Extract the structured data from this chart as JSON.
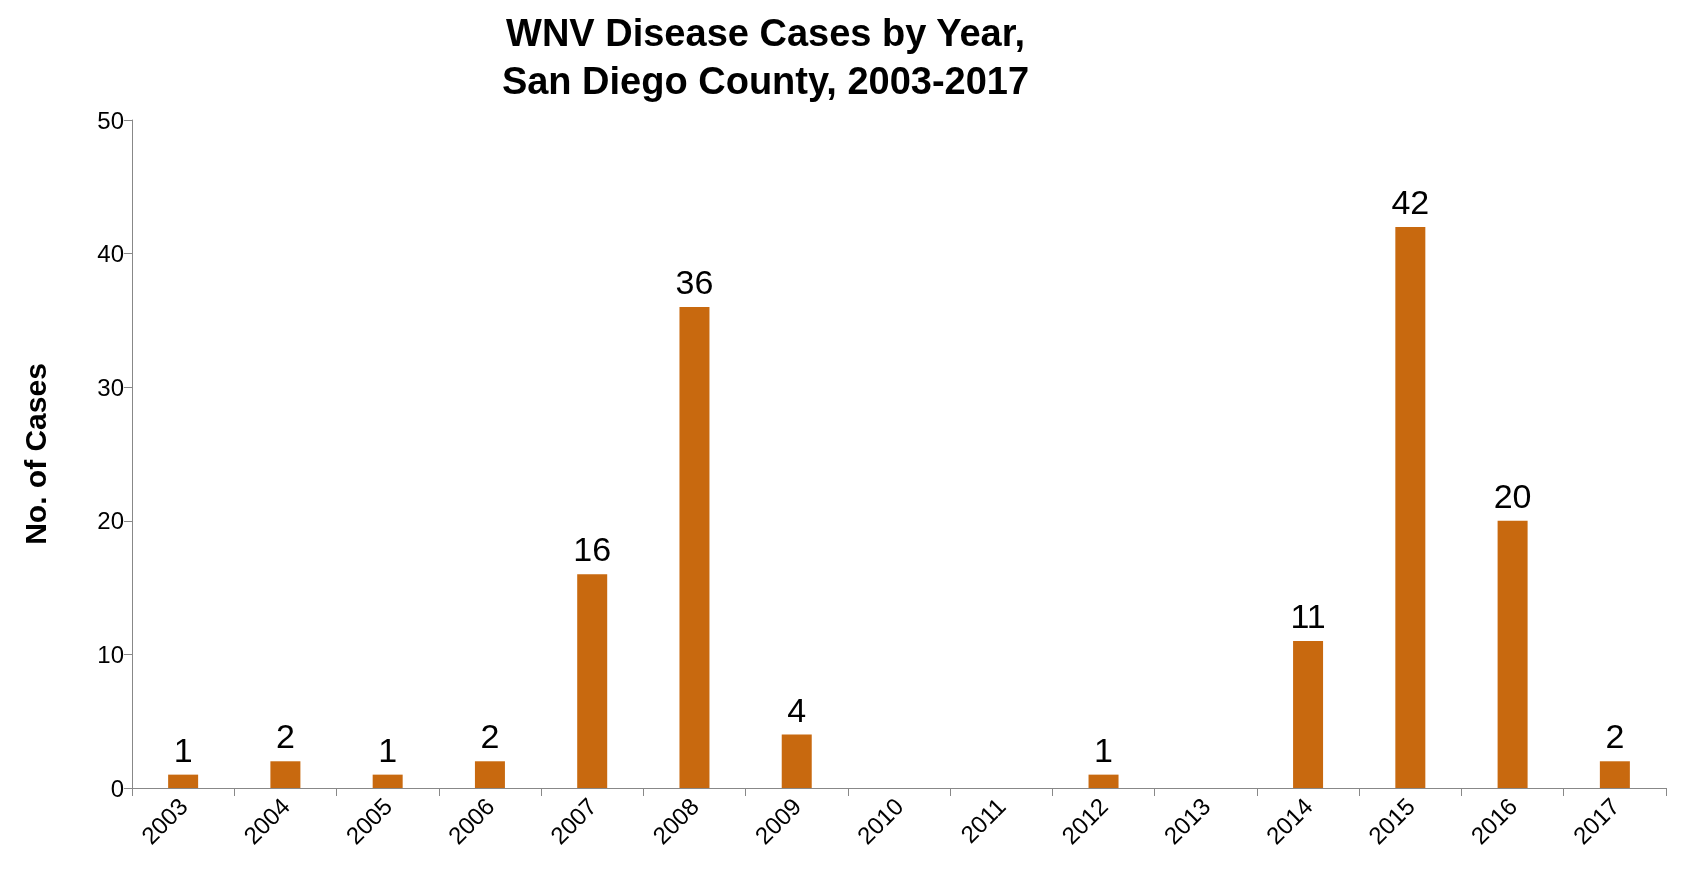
{
  "chart_data": {
    "type": "bar",
    "title": "WNV Disease Cases by Year,\nSan Diego County, 2003-2017",
    "ylabel": "No. of Cases",
    "categories": [
      "2003",
      "2004",
      "2005",
      "2006",
      "2007",
      "2008",
      "2009",
      "2010",
      "2011",
      "2012",
      "2013",
      "2014",
      "2015",
      "2016",
      "2017"
    ],
    "values": [
      1,
      2,
      1,
      2,
      16,
      36,
      4,
      0,
      0,
      1,
      0,
      11,
      42,
      20,
      2
    ],
    "value_labels": [
      "1",
      "2",
      "1",
      "2",
      "16",
      "36",
      "4",
      null,
      null,
      "1",
      null,
      "11",
      "42",
      "20",
      "2"
    ],
    "color": "#c8690f",
    "ylim": [
      0,
      50
    ],
    "yticks": [
      0,
      10,
      20,
      30,
      40,
      50
    ],
    "grid": false
  }
}
